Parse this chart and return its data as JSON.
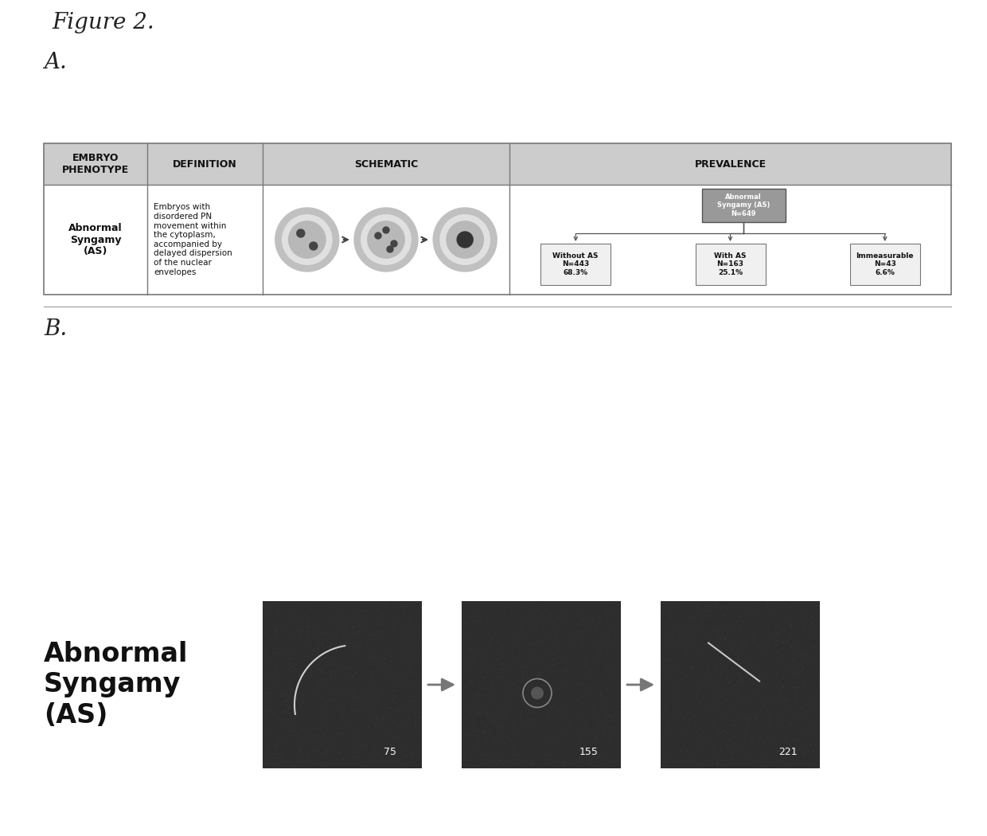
{
  "figure_title": "Figure 2.",
  "section_a_label": "A.",
  "section_b_label": "B.",
  "table_headers": [
    "EMBRYO\nPHENOTYPE",
    "DEFINITION",
    "SCHEMATIC",
    "PREVALENCE"
  ],
  "phenotype_name": "Abnormal\nSyngamy\n(AS)",
  "definition_text": "Embryos with\ndisordered PN\nmovement within\nthe cytoplasm,\naccompanied by\ndelayed dispersion\nof the nuclear\nenvelopes",
  "prevalence_top_box": "Abnormal\nSyngamy (AS)\nN=649",
  "prevalence_boxes": [
    "Without AS\nN=443\n68.3%",
    "With AS\nN=163\n25.1%",
    "Immeasurable\nN=43\n6.6%"
  ],
  "section_b_label_text": "Abnormal\nSyngamy\n(AS)",
  "frame_numbers": [
    "75",
    "155",
    "221"
  ],
  "bg_color": "#ffffff",
  "table_header_bg": "#cccccc",
  "table_border_color": "#777777",
  "prevalence_top_box_color": "#888888",
  "prevalence_child_box_color": "#f0f0f0",
  "dark_image_color": "#2d2d2d",
  "arrow_color": "#888888",
  "fig_title_fontsize": 20,
  "section_label_fontsize": 20
}
